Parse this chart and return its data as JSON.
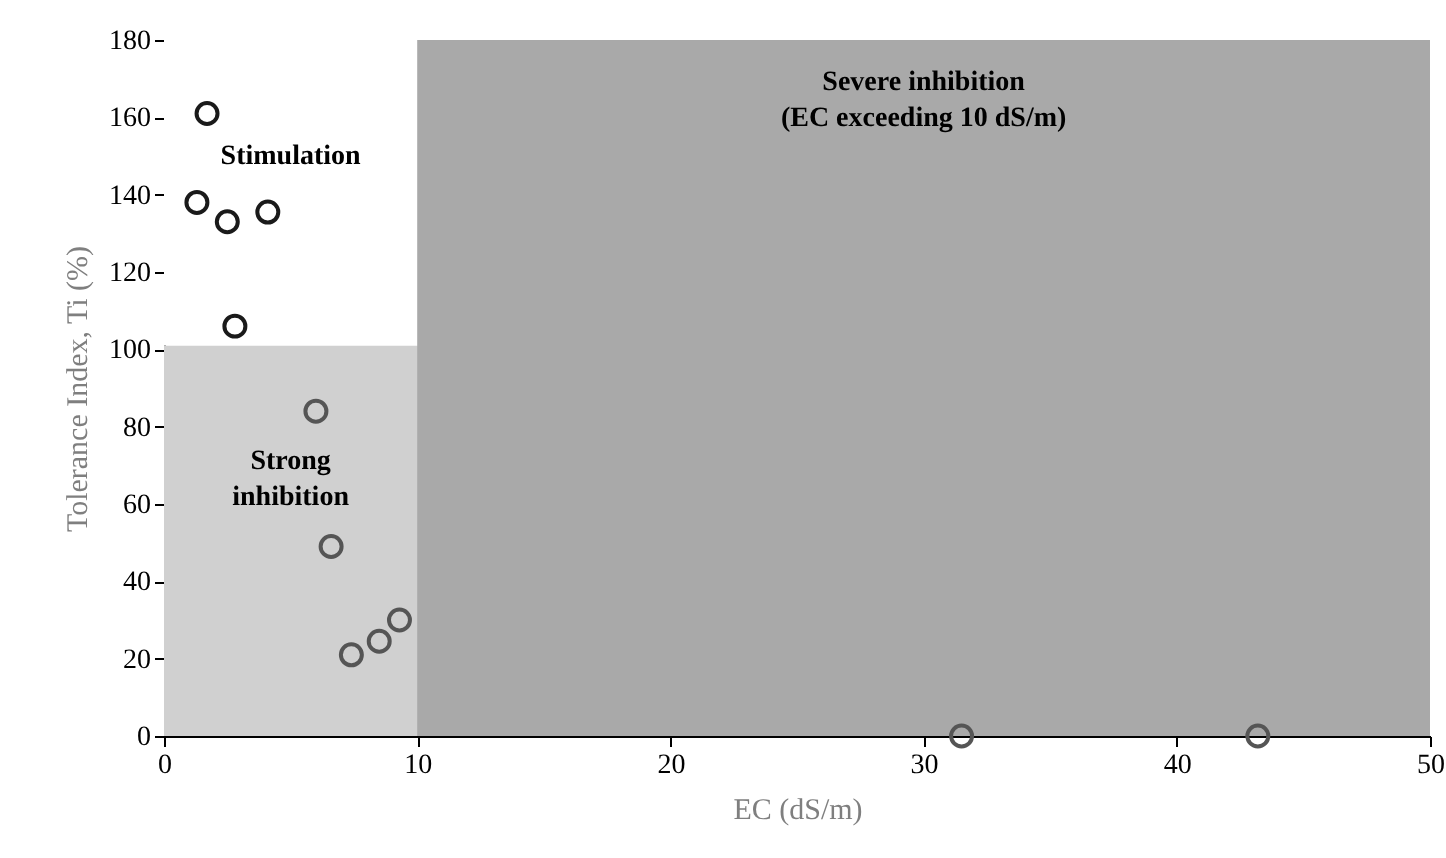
{
  "chart_data": {
    "type": "scatter",
    "xlabel": "EC (dS/m)",
    "ylabel": "Tolerance Index, Ti (%)",
    "xlim": [
      0,
      50
    ],
    "xticks": [
      0,
      10,
      20,
      30,
      40,
      50
    ],
    "ylim": [
      0,
      180
    ],
    "yticks": [
      0,
      20,
      40,
      60,
      80,
      100,
      120,
      140,
      160,
      180
    ],
    "grid": false,
    "marker": "circle",
    "series": [
      {
        "color": "#1a1a1a",
        "x": [
          1.7,
          1.3,
          2.5,
          4.1,
          2.8
        ],
        "values": [
          161,
          138,
          133,
          135.5,
          106
        ]
      },
      {
        "color": "#555555",
        "x": [
          6.0,
          6.6,
          7.4,
          8.5,
          9.3,
          31.5,
          43.2
        ],
        "values": [
          84,
          49,
          21,
          24.5,
          30,
          0,
          0
        ]
      }
    ],
    "bands": [
      {
        "axis": "y",
        "from": 0,
        "to": 101,
        "label": "Strong\ninhibition",
        "color": "#d0d0d0"
      },
      {
        "axis": "y",
        "from": 101,
        "to": 180,
        "label": "Stimulation",
        "color": "#ffffff"
      },
      {
        "axis": "x",
        "from": 10,
        "to": 50,
        "label": "Severe inhibition\n(EC exceeding 10 dS/m)",
        "color": "#a9a9a9"
      }
    ]
  }
}
